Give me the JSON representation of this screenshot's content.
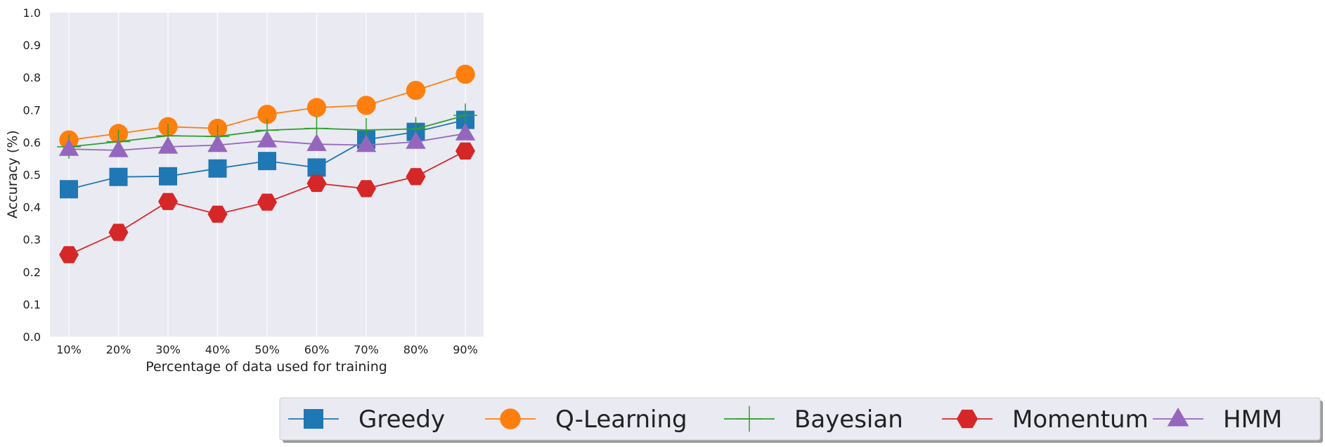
{
  "chart_data": {
    "type": "line",
    "xlabel": "Percentage of data used for training",
    "ylabel": "Accuracy (%)",
    "categories": [
      "10%",
      "20%",
      "30%",
      "40%",
      "50%",
      "60%",
      "70%",
      "80%",
      "90%"
    ],
    "ylim": [
      0.0,
      1.0
    ],
    "yticks": [
      "0.0",
      "0.1",
      "0.2",
      "0.3",
      "0.4",
      "0.5",
      "0.6",
      "0.7",
      "0.8",
      "0.9",
      "1.0"
    ],
    "grid": "vertical",
    "legend_position": "bottom",
    "series": [
      {
        "name": "Greedy",
        "color": "#1f77b4",
        "marker": "square",
        "values": [
          0.455,
          0.493,
          0.495,
          0.519,
          0.542,
          0.522,
          0.608,
          0.632,
          0.669
        ]
      },
      {
        "name": "Q-Learning",
        "color": "#ff7f0e",
        "marker": "circle",
        "values": [
          0.607,
          0.627,
          0.648,
          0.643,
          0.686,
          0.707,
          0.714,
          0.76,
          0.81
        ]
      },
      {
        "name": "Bayesian",
        "color": "#2ca02c",
        "marker": "plus",
        "values": [
          0.586,
          0.602,
          0.62,
          0.618,
          0.637,
          0.643,
          0.638,
          0.641,
          0.683
        ]
      },
      {
        "name": "Momentum",
        "color": "#d62728",
        "marker": "hexagon",
        "values": [
          0.253,
          0.322,
          0.417,
          0.378,
          0.415,
          0.473,
          0.457,
          0.494,
          0.573
        ]
      },
      {
        "name": "HMM",
        "color": "#9467bd",
        "marker": "triangle",
        "values": [
          0.579,
          0.575,
          0.586,
          0.591,
          0.605,
          0.594,
          0.591,
          0.601,
          0.627
        ]
      }
    ]
  }
}
